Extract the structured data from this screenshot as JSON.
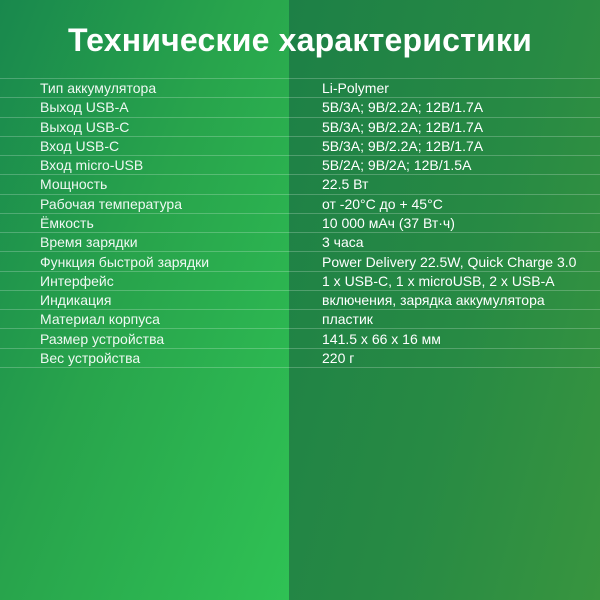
{
  "title": "Технические характеристики",
  "specs": {
    "rows": [
      {
        "label": "Тип аккумулятора",
        "value": "Li-Polymer"
      },
      {
        "label": "Выход USB-A",
        "value": "5В/3А; 9В/2.2А; 12В/1.7А"
      },
      {
        "label": "Выход USB-C",
        "value": "5В/3А; 9В/2.2А; 12В/1.7А"
      },
      {
        "label": "Вход USB-C",
        "value": "5В/3А; 9В/2.2А; 12В/1.7А"
      },
      {
        "label": "Вход micro-USB",
        "value": "5В/2А; 9В/2А; 12В/1.5А"
      },
      {
        "label": "Мощность",
        "value": "22.5 Вт"
      },
      {
        "label": "Рабочая температура",
        "value": "от -20°С до + 45°С"
      },
      {
        "label": "Ёмкость",
        "value": "10 000 мАч (37 Вт·ч)"
      },
      {
        "label": "Время зарядки",
        "value": "3 часа"
      },
      {
        "label": "Функция быстрой зарядки",
        "value": "Power Delivery 22.5W, Quick Charge 3.0"
      },
      {
        "label": "Интерфейс",
        "value": "1 x USB-C, 1 x microUSB, 2 x USB-A"
      },
      {
        "label": "Индикация",
        "value": "включения, зарядка аккумулятора"
      },
      {
        "label": "Материал корпуса",
        "value": "пластик"
      },
      {
        "label": "Размер устройства",
        "value": "141.5 x 66 x 16 мм"
      },
      {
        "label": "Вес устройства",
        "value": "220 г"
      }
    ]
  },
  "colors": {
    "left_gradient_start": "#19884d",
    "left_gradient_end": "#2fc254",
    "right_gradient_start": "#1d8046",
    "right_gradient_end": "#38953f",
    "separator": "rgba(255,255,255,0.22)",
    "text": "#ffffff"
  }
}
